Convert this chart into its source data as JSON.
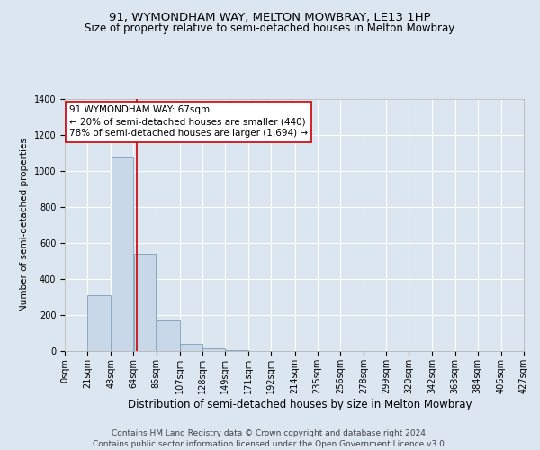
{
  "title": "91, WYMONDHAM WAY, MELTON MOWBRAY, LE13 1HP",
  "subtitle": "Size of property relative to semi-detached houses in Melton Mowbray",
  "xlabel": "Distribution of semi-detached houses by size in Melton Mowbray",
  "ylabel": "Number of semi-detached properties",
  "footer_line1": "Contains HM Land Registry data © Crown copyright and database right 2024.",
  "footer_line2": "Contains public sector information licensed under the Open Government Licence v3.0.",
  "annotation_line1": "91 WYMONDHAM WAY: 67sqm",
  "annotation_line2": "← 20% of semi-detached houses are smaller (440)",
  "annotation_line3": "78% of semi-detached houses are larger (1,694) →",
  "property_size_sqm": 67,
  "bin_edges": [
    0,
    21,
    43,
    64,
    85,
    107,
    128,
    149,
    171,
    192,
    214,
    235,
    256,
    278,
    299,
    320,
    342,
    363,
    384,
    406,
    427
  ],
  "bin_labels": [
    "0sqm",
    "21sqm",
    "43sqm",
    "64sqm",
    "85sqm",
    "107sqm",
    "128sqm",
    "149sqm",
    "171sqm",
    "192sqm",
    "214sqm",
    "235sqm",
    "256sqm",
    "278sqm",
    "299sqm",
    "320sqm",
    "342sqm",
    "363sqm",
    "384sqm",
    "406sqm",
    "427sqm"
  ],
  "bar_heights": [
    0,
    310,
    1075,
    540,
    170,
    40,
    15,
    5,
    2,
    0,
    0,
    0,
    0,
    0,
    0,
    0,
    0,
    0,
    0,
    0
  ],
  "bar_color": "#c8d8e8",
  "bar_edge_color": "#7090b0",
  "vline_color": "#cc0000",
  "vline_x": 67,
  "ylim": [
    0,
    1400
  ],
  "yticks": [
    0,
    200,
    400,
    600,
    800,
    1000,
    1200,
    1400
  ],
  "background_color": "#dce6f0",
  "plot_bg_color": "#dce6f0",
  "grid_color": "#ffffff",
  "annotation_box_color": "#ffffff",
  "annotation_border_color": "#cc0000",
  "title_fontsize": 9.5,
  "subtitle_fontsize": 8.5,
  "xlabel_fontsize": 8.5,
  "ylabel_fontsize": 7.5,
  "tick_fontsize": 7,
  "annotation_fontsize": 7.5,
  "footer_fontsize": 6.5
}
